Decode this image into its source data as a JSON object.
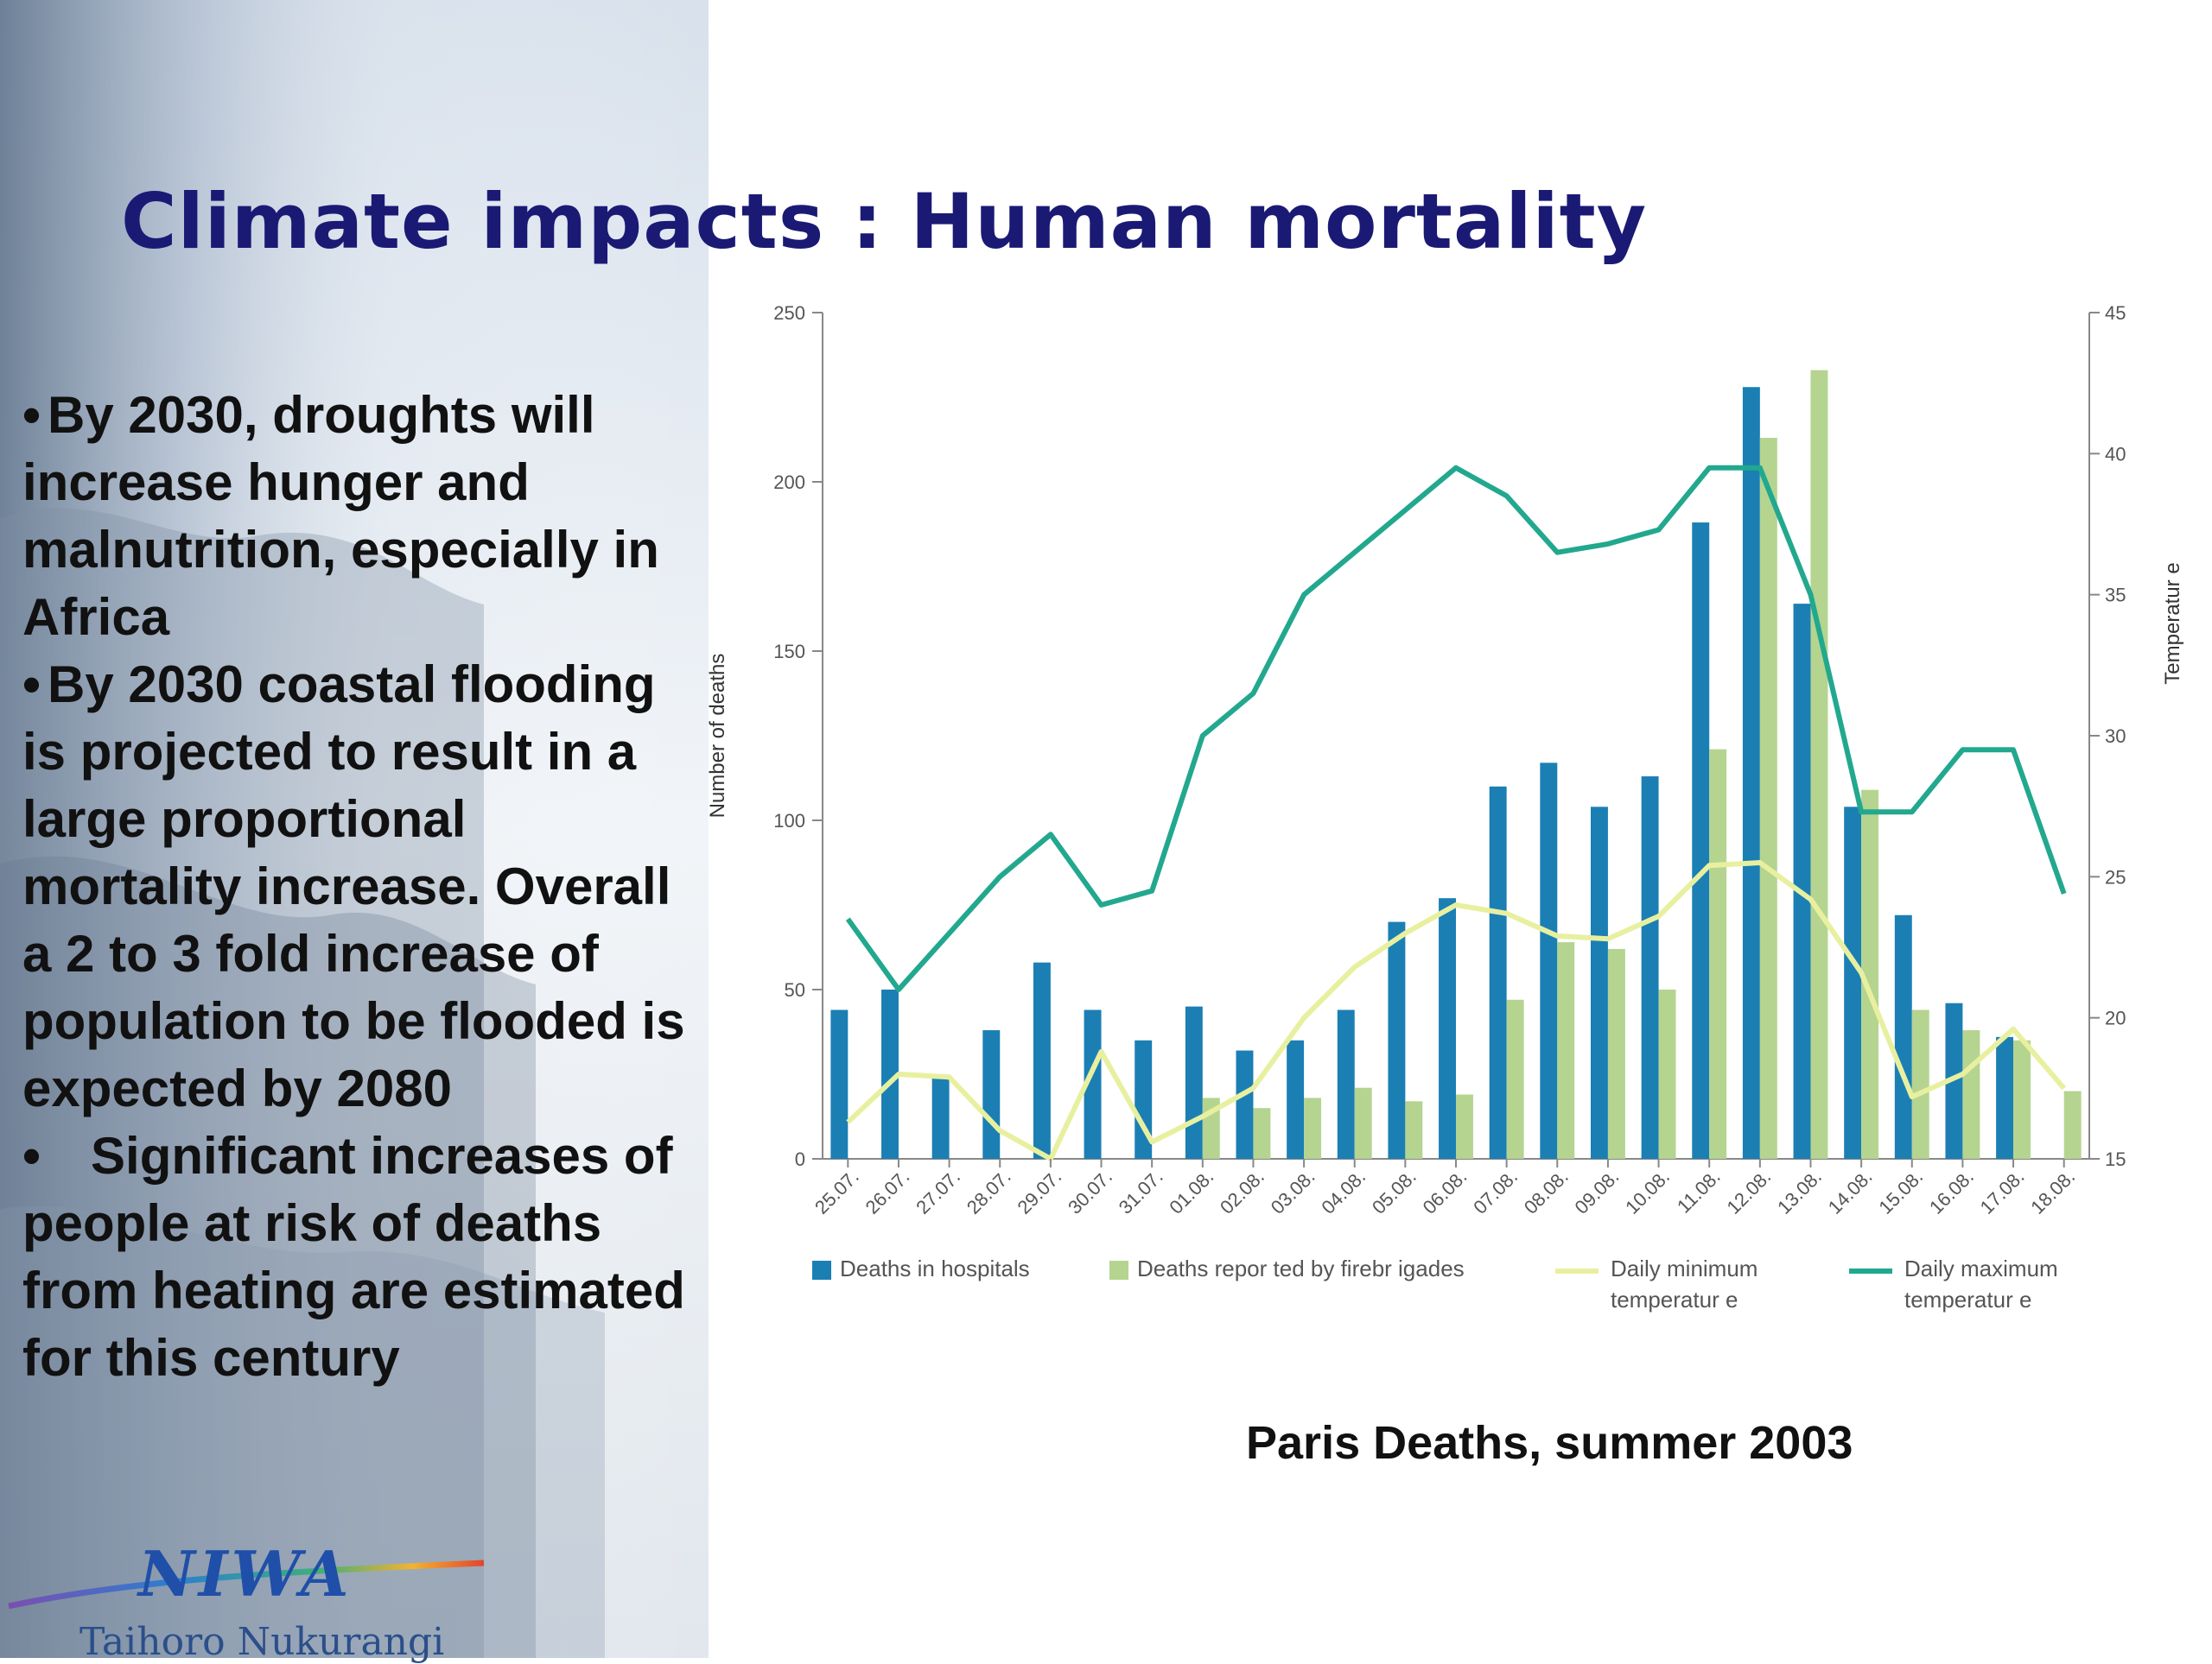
{
  "slide": {
    "title": "Climate impacts : Human mortality",
    "bullets": [
      {
        "marker": "•",
        "text": "By 2030, droughts will increase hunger and malnutrition, especially in Africa"
      },
      {
        "marker": "•",
        "text": "By 2030 coastal flooding is projected to result in a large proportional mortality increase. Overall a 2 to 3 fold increase of population to be flooded is expected by 2080"
      },
      {
        "marker": "•",
        "text": "Significant increases of people at risk of deaths from heating are estimated for this century"
      }
    ],
    "caption": "Paris Deaths, summer 2003",
    "logo": {
      "wordmark": "NIWA",
      "subtitle": "Taihoro Nukurangi"
    }
  },
  "colors": {
    "title": "#1a1a75",
    "hospital_bar": "#1b7fb4",
    "firebrigade_bar": "#b4d490",
    "min_temp_line": "#e8f0a0",
    "max_temp_line": "#22a88e"
  },
  "chart_data": {
    "type": "bar",
    "categories": [
      "25.07.",
      "26.07.",
      "27.07.",
      "28.07.",
      "29.07.",
      "30.07.",
      "31.07.",
      "01.08.",
      "02.08.",
      "03.08.",
      "04.08.",
      "05.08.",
      "06.08.",
      "07.08.",
      "08.08.",
      "09.08.",
      "10.08.",
      "11.08.",
      "12.08.",
      "13.08.",
      "14.08.",
      "15.08.",
      "16.08.",
      "17.08.",
      "18.08."
    ],
    "ylabel": "Number of deaths",
    "ylabel_right": "Temperatur e",
    "ylim": [
      0,
      250
    ],
    "yticks": [
      0,
      50,
      100,
      150,
      200,
      250
    ],
    "ylim_right": [
      15,
      45
    ],
    "yticks_right": [
      15,
      20,
      25,
      30,
      35,
      40,
      45
    ],
    "legend_placement": "bottom",
    "series": [
      {
        "name": "Deaths in hospitals",
        "kind": "bar",
        "axis": "left",
        "values": [
          44,
          50,
          24,
          38,
          58,
          44,
          35,
          45,
          32,
          35,
          44,
          70,
          77,
          110,
          117,
          104,
          113,
          188,
          228,
          164,
          104,
          72,
          46,
          36,
          null
        ]
      },
      {
        "name": "Deaths repor ted by firebr igades",
        "kind": "bar",
        "axis": "left",
        "values": [
          null,
          null,
          null,
          null,
          null,
          null,
          null,
          18,
          15,
          18,
          21,
          17,
          19,
          47,
          64,
          62,
          50,
          121,
          213,
          233,
          109,
          44,
          38,
          35,
          20
        ]
      },
      {
        "name": "Daily minimum temperatur e",
        "kind": "line",
        "axis": "right",
        "values": [
          16.3,
          18.0,
          17.9,
          16.0,
          15.0,
          18.8,
          15.6,
          16.5,
          17.5,
          20.0,
          21.8,
          23.0,
          24.0,
          23.7,
          22.9,
          22.8,
          23.6,
          25.4,
          25.5,
          24.2,
          21.6,
          17.2,
          18.0,
          19.6,
          17.5
        ]
      },
      {
        "name": "Daily maximum temperatur e",
        "kind": "line",
        "axis": "right",
        "values": [
          23.5,
          21.0,
          23.0,
          25.0,
          26.5,
          24.0,
          24.5,
          30.0,
          31.5,
          35.0,
          36.5,
          38.0,
          39.5,
          38.5,
          36.5,
          36.8,
          37.3,
          39.5,
          39.5,
          35.0,
          27.3,
          27.3,
          29.5,
          29.5,
          24.4
        ]
      }
    ]
  }
}
